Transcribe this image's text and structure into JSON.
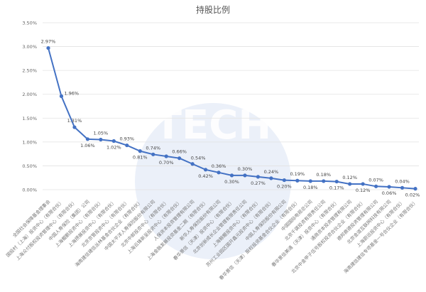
{
  "watermark": "TECH",
  "chart_data": {
    "type": "line",
    "title": "持股比例",
    "xlabel": "",
    "ylabel": "",
    "ylim": [
      0,
      3.5
    ],
    "yticks": [
      "0.00%",
      "0.50%",
      "1.00%",
      "1.50%",
      "2.00%",
      "2.50%",
      "3.00%",
      "3.50%"
    ],
    "grid": true,
    "legend": "none",
    "series_color": "#4472c4",
    "categories": [
      "全国社会保障基金理事会",
      "国投村（上海）投资中心（有限合伙）",
      "上海众付股权投资管理中心（有限合伙）",
      "中国人寿保险（集团）公司",
      "上海鲲鹏投资中心（有限合伙）",
      "上海摂展投资中心（有限合伙）",
      "北京京管投资中心（有限合伙）",
      "海南建信建信丛林基金合伙企业（有限合伙）",
      "中国太平洋人寿保险股份有限公司",
      "北京中邮投资中心（有限合伙）",
      "上海云锋新呈投资中心（有限合伙）",
      "人保资本投资管理有限公司",
      "上海金融发展投资基金二期（有限合伙）",
      "新华人寿保险股份有限公司",
      "春华景信（天津）投资中心（有限合伙）",
      "北京创新成长企业管理有限责任公司",
      "上海鲸鲲投资中心（有限合伙）",
      "苏州工业园区国开鑫元投资中心（有限合伙）",
      "中国人寿保险股份有限公司",
      "春华景信（天津）股权投资基金合伙企业（有限合伙）",
      "中国国际电视总公司",
      "北京千骐投资有限责任公司",
      "春华景信美通（天津）投资中心（有限合伙）",
      "通商资本投资管理有限公司",
      "北京中金甲子伍号股权投资合伙企业（有限合伙）",
      "德邦鼎德投资管理有限公司",
      "北京金道互联网科技有限公司",
      "上海蔚远投资中心（有限合伙）",
      "海南建信建信专项基金一号合伙企业（有限合伙）"
    ],
    "values": [
      2.97,
      1.96,
      1.31,
      1.06,
      1.05,
      1.02,
      0.93,
      0.81,
      0.74,
      0.7,
      0.66,
      0.54,
      0.42,
      0.36,
      0.3,
      0.3,
      0.27,
      0.24,
      0.2,
      0.19,
      0.18,
      0.18,
      0.17,
      0.12,
      0.12,
      0.07,
      0.06,
      0.04,
      0.02
    ],
    "data_labels": [
      "2.97%",
      "1.96%",
      "1.31%",
      "1.06%",
      "1.05%",
      "1.02%",
      "0.93%",
      "0.81%",
      "0.74%",
      "0.70%",
      "0.66%",
      "0.54%",
      "0.42%",
      "0.36%",
      "0.30%",
      "0.30%",
      "0.27%",
      "0.24%",
      "0.20%",
      "0.19%",
      "0.18%",
      "0.18%",
      "0.17%",
      "0.12%",
      "0.12%",
      "0.07%",
      "0.06%",
      "0.04%",
      "0.02%"
    ]
  }
}
